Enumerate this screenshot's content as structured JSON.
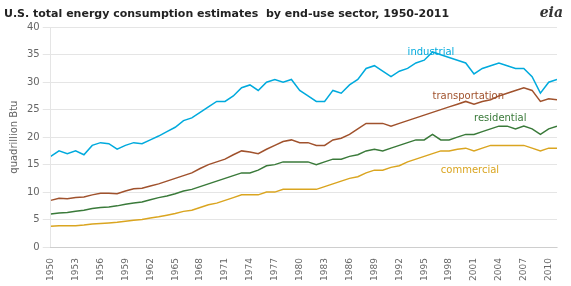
{
  "chart_data": {
    "type": "line",
    "title": "U.S. total energy consumption estimates  by end-use sector, 1950-2011",
    "ylabel": "quadrillion Btu",
    "x": [
      1950,
      1951,
      1952,
      1953,
      1954,
      1955,
      1956,
      1957,
      1958,
      1959,
      1960,
      1961,
      1962,
      1963,
      1964,
      1965,
      1966,
      1967,
      1968,
      1969,
      1970,
      1971,
      1972,
      1973,
      1974,
      1975,
      1976,
      1977,
      1978,
      1979,
      1980,
      1981,
      1982,
      1983,
      1984,
      1985,
      1986,
      1987,
      1988,
      1989,
      1990,
      1991,
      1992,
      1993,
      1994,
      1995,
      1996,
      1997,
      1998,
      1999,
      2000,
      2001,
      2002,
      2003,
      2004,
      2005,
      2006,
      2007,
      2008,
      2009,
      2010,
      2011
    ],
    "series": [
      {
        "name": "industrial",
        "color": "#00AADD",
        "values": [
          16.5,
          17.5,
          17.0,
          17.5,
          16.8,
          18.5,
          19.0,
          18.8,
          17.8,
          18.5,
          19.0,
          18.8,
          19.5,
          20.2,
          21.0,
          21.8,
          23.0,
          23.5,
          24.5,
          25.5,
          26.5,
          26.5,
          27.5,
          29.0,
          29.5,
          28.5,
          30.0,
          30.5,
          30.0,
          30.5,
          28.5,
          27.5,
          26.5,
          26.5,
          28.5,
          28.0,
          29.5,
          30.5,
          32.5,
          33.0,
          32.0,
          31.0,
          32.0,
          32.5,
          33.5,
          34.0,
          35.5,
          35.0,
          34.5,
          34.0,
          33.5,
          31.5,
          32.5,
          33.0,
          33.5,
          33.0,
          32.5,
          32.5,
          31.0,
          28.0,
          30.0,
          30.5
        ]
      },
      {
        "name": "transportation",
        "color": "#A0522D",
        "values": [
          8.5,
          8.9,
          8.8,
          9.0,
          9.1,
          9.5,
          9.8,
          9.8,
          9.7,
          10.2,
          10.6,
          10.7,
          11.1,
          11.5,
          12.0,
          12.5,
          13.0,
          13.5,
          14.3,
          15.0,
          15.5,
          16.0,
          16.8,
          17.5,
          17.3,
          17.0,
          17.8,
          18.5,
          19.2,
          19.5,
          19.0,
          19.0,
          18.5,
          18.5,
          19.5,
          19.8,
          20.5,
          21.5,
          22.5,
          22.5,
          22.5,
          22.0,
          22.5,
          23.0,
          23.5,
          24.0,
          24.5,
          25.0,
          25.5,
          26.0,
          26.5,
          26.0,
          26.5,
          26.8,
          27.5,
          28.0,
          28.5,
          29.0,
          28.5,
          26.5,
          27.0,
          26.8
        ]
      },
      {
        "name": "residential",
        "color": "#3A7A3A",
        "values": [
          6.0,
          6.2,
          6.3,
          6.5,
          6.7,
          7.0,
          7.2,
          7.3,
          7.5,
          7.8,
          8.0,
          8.2,
          8.6,
          9.0,
          9.3,
          9.7,
          10.2,
          10.5,
          11.0,
          11.5,
          12.0,
          12.5,
          13.0,
          13.5,
          13.5,
          14.0,
          14.8,
          15.0,
          15.5,
          15.5,
          15.5,
          15.5,
          15.0,
          15.5,
          16.0,
          16.0,
          16.5,
          16.8,
          17.5,
          17.8,
          17.5,
          18.0,
          18.5,
          19.0,
          19.5,
          19.5,
          20.5,
          19.5,
          19.5,
          20.0,
          20.5,
          20.5,
          21.0,
          21.5,
          22.0,
          22.0,
          21.5,
          22.0,
          21.5,
          20.5,
          21.5,
          22.0
        ]
      },
      {
        "name": "commercial",
        "color": "#DAA520",
        "values": [
          3.8,
          3.9,
          3.9,
          3.9,
          4.0,
          4.2,
          4.3,
          4.4,
          4.5,
          4.7,
          4.9,
          5.0,
          5.3,
          5.5,
          5.8,
          6.1,
          6.5,
          6.7,
          7.2,
          7.7,
          8.0,
          8.5,
          9.0,
          9.5,
          9.5,
          9.5,
          10.0,
          10.0,
          10.5,
          10.5,
          10.5,
          10.5,
          10.5,
          11.0,
          11.5,
          12.0,
          12.5,
          12.8,
          13.5,
          14.0,
          14.0,
          14.5,
          14.8,
          15.5,
          16.0,
          16.5,
          17.0,
          17.5,
          17.5,
          17.8,
          18.0,
          17.5,
          18.0,
          18.5,
          18.5,
          18.5,
          18.5,
          18.5,
          18.0,
          17.5,
          18.0,
          18.0
        ]
      }
    ],
    "xlim": [
      1950,
      2011
    ],
    "xticks": [
      1950,
      1953,
      1956,
      1959,
      1962,
      1965,
      1968,
      1971,
      1974,
      1977,
      1980,
      1983,
      1986,
      1989,
      1992,
      1995,
      1998,
      2001,
      2004,
      2007,
      2010
    ],
    "ylim": [
      0,
      40
    ],
    "yticks": [
      0,
      5,
      10,
      15,
      20,
      25,
      30,
      35,
      40
    ],
    "grid": "y",
    "annotations": [
      {
        "text": "industrial",
        "x": 1993,
        "y": 35.5,
        "series": "industrial"
      },
      {
        "text": "transportation",
        "x": 1996,
        "y": 27.5,
        "series": "transportation"
      },
      {
        "text": "residential",
        "x": 2001,
        "y": 23.5,
        "series": "residential"
      },
      {
        "text": "commercial",
        "x": 1997,
        "y": 14.0,
        "series": "commercial"
      },
      {
        "text": "eia"
      }
    ]
  }
}
